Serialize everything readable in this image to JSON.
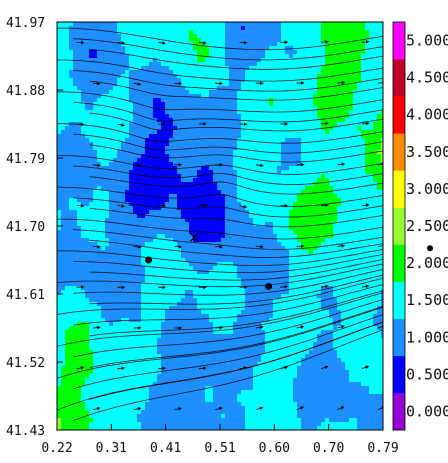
{
  "chart_data": {
    "type": "heatmap",
    "title": "",
    "xlabel": "",
    "ylabel": "",
    "x_ticks": [
      "0.22",
      "0.31",
      "0.41",
      "0.51",
      "0.60",
      "0.70",
      "0.79"
    ],
    "y_ticks": [
      "41.97",
      "41.88",
      "41.79",
      "41.70",
      "41.61",
      "41.52",
      "41.43"
    ],
    "xlim": [
      0.22,
      0.79
    ],
    "ylim": [
      41.43,
      41.97
    ],
    "overlay": "streamlines with arrowheads (wind flow)",
    "markers": [
      {
        "x": 0.38,
        "y": 41.655
      },
      {
        "x": 0.59,
        "y": 41.62
      }
    ],
    "cross_marker": {
      "x": 0.46,
      "y": 41.685
    },
    "colorbar": {
      "levels": [
        "0.000",
        "0.500",
        "1.000",
        "1.500",
        "2.000",
        "2.500",
        "3.000",
        "3.500",
        "4.000",
        "4.500",
        "5.000"
      ],
      "colors": [
        "#9400d3",
        "#0000ff",
        "#1e8fff",
        "#00ffff",
        "#00ff00",
        "#9aff32",
        "#ffff00",
        "#ff8c00",
        "#ff0000",
        "#c0002a",
        "#ff00ff"
      ],
      "marker_level": 2.2
    }
  }
}
